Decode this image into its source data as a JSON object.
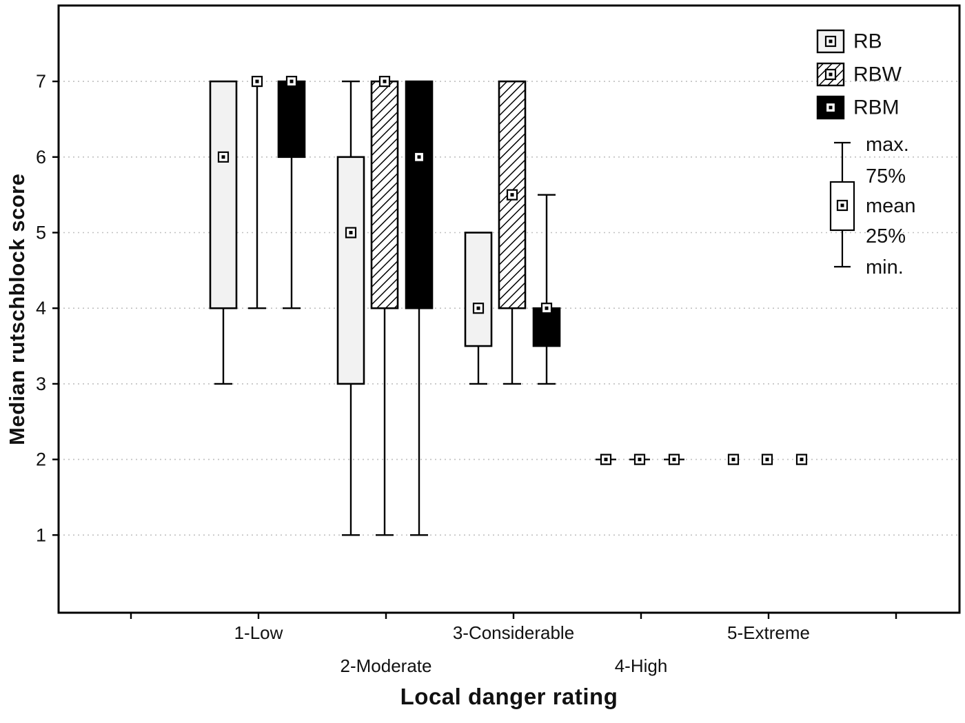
{
  "chart_data": {
    "type": "box",
    "title": "",
    "xlabel": "Local danger rating",
    "ylabel": "Median rutschblock score",
    "ylim": [
      0,
      8
    ],
    "yticks": [
      1,
      2,
      3,
      4,
      5,
      6,
      7
    ],
    "grid": "horizontal-dotted",
    "legend_position": "top-right",
    "categories": [
      "1-Low",
      "2-Moderate",
      "3-Considerable",
      "4-High",
      "5-Extreme"
    ],
    "series": [
      {
        "name": "RB",
        "box_style": "white",
        "stats": [
          {
            "category": "1-Low",
            "min": 3,
            "q25": 4,
            "mean": 6,
            "q75": 7,
            "max": 7,
            "whisker": true
          },
          {
            "category": "2-Moderate",
            "min": 1,
            "q25": 3,
            "mean": 5,
            "q75": 6,
            "max": 7,
            "whisker": true
          },
          {
            "category": "3-Considerable",
            "min": 3,
            "q25": 3.5,
            "mean": 4,
            "q75": 5,
            "max": 5,
            "whisker": true
          },
          {
            "category": "4-High",
            "min": 2,
            "q25": 2,
            "mean": 2,
            "q75": 2,
            "max": 2,
            "whisker": true
          },
          {
            "category": "5-Extreme",
            "min": 2,
            "q25": 2,
            "mean": 2,
            "q75": 2,
            "max": 2,
            "whisker": false
          }
        ]
      },
      {
        "name": "RBW",
        "box_style": "hatched",
        "stats": [
          {
            "category": "1-Low",
            "min": 4,
            "q25": 7,
            "mean": 7,
            "q75": 7,
            "max": 7,
            "whisker": true
          },
          {
            "category": "2-Moderate",
            "min": 1,
            "q25": 4,
            "mean": 7,
            "q75": 7,
            "max": 7,
            "whisker": true
          },
          {
            "category": "3-Considerable",
            "min": 3,
            "q25": 4,
            "mean": 5.5,
            "q75": 7,
            "max": 7,
            "whisker": true
          },
          {
            "category": "4-High",
            "min": 2,
            "q25": 2,
            "mean": 2,
            "q75": 2,
            "max": 2,
            "whisker": true
          },
          {
            "category": "5-Extreme",
            "min": 2,
            "q25": 2,
            "mean": 2,
            "q75": 2,
            "max": 2,
            "whisker": false
          }
        ]
      },
      {
        "name": "RBM",
        "box_style": "black",
        "stats": [
          {
            "category": "1-Low",
            "min": 4,
            "q25": 6,
            "mean": 7,
            "q75": 7,
            "max": 7,
            "whisker": true
          },
          {
            "category": "2-Moderate",
            "min": 1,
            "q25": 4,
            "mean": 6,
            "q75": 7,
            "max": 7,
            "whisker": true
          },
          {
            "category": "3-Considerable",
            "min": 3,
            "q25": 3.5,
            "mean": 4,
            "q75": 4,
            "max": 5.5,
            "whisker": true
          },
          {
            "category": "4-High",
            "min": 2,
            "q25": 2,
            "mean": 2,
            "q75": 2,
            "max": 2,
            "whisker": true
          },
          {
            "category": "5-Extreme",
            "min": 2,
            "q25": 2,
            "mean": 2,
            "q75": 2,
            "max": 2,
            "whisker": false
          }
        ]
      }
    ],
    "legend": {
      "entries": [
        {
          "label": "RB"
        },
        {
          "label": "RBW"
        },
        {
          "label": "RBM"
        }
      ],
      "key_labels": [
        "max.",
        "75%",
        "mean",
        "25%",
        "min."
      ]
    }
  },
  "colors": {
    "stroke": "#000000",
    "text": "#111111",
    "background": "#ffffff",
    "box_fill_light": "#f2f2f2",
    "box_fill_black": "#000000",
    "grid": "#bfbfbf"
  }
}
